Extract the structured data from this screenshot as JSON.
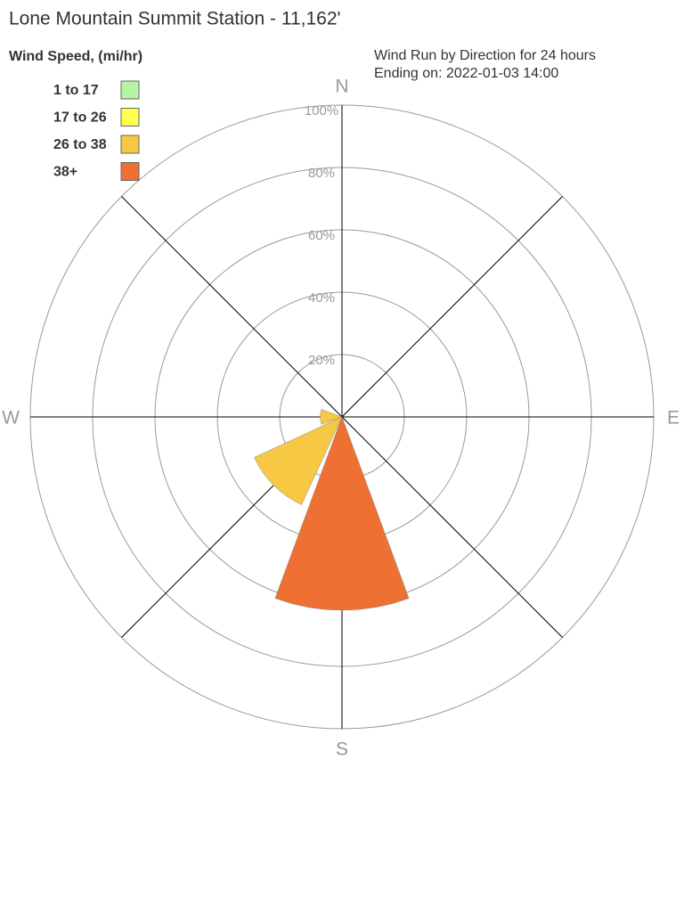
{
  "chart_data": {
    "type": "windrose",
    "title": "Lone Mountain Summit Station - 11,162'",
    "legend_title": "Wind Speed, (mi/hr)",
    "subtitle_lines": [
      "Wind Run by Direction for 24 hours",
      "Ending on: 2022-01-03 14:00"
    ],
    "categories": [
      "N",
      null,
      "E",
      null,
      "S",
      null,
      "W",
      null
    ],
    "series": [
      {
        "name": "1 to 17",
        "color": "#b3f5a3",
        "values": [
          0,
          0,
          0,
          0,
          0,
          0,
          0,
          0
        ]
      },
      {
        "name": "17 to 26",
        "color": "#ffff4d",
        "values": [
          0,
          0,
          0,
          0,
          0,
          0,
          0,
          0
        ]
      },
      {
        "name": "26 to 38",
        "color": "#f7c843",
        "values": [
          0,
          0,
          0,
          0,
          0,
          31,
          7,
          0
        ]
      },
      {
        "name": "38+",
        "color": "#ee7032",
        "values": [
          0,
          0,
          0,
          0,
          62,
          0,
          0,
          0
        ]
      }
    ],
    "rlim": [
      0,
      100
    ],
    "rticks": [
      {
        "value": 20,
        "label": "20%"
      },
      {
        "value": 40,
        "label": "40%"
      },
      {
        "value": 60,
        "label": "60%"
      },
      {
        "value": 80,
        "label": "80%"
      },
      {
        "value": 100,
        "label": "100%"
      }
    ],
    "grid": true
  }
}
